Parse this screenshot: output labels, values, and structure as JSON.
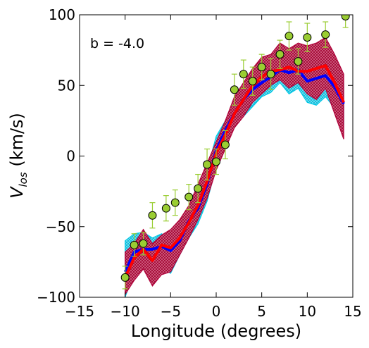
{
  "chart_data": {
    "type": "line",
    "annotation": "b = -4.0",
    "xlabel": "Longitude (degrees)",
    "ylabel_main": "V",
    "ylabel_sub": "los",
    "ylabel_unit": " (km/s)",
    "xlim": [
      -15,
      15
    ],
    "ylim": [
      -100,
      100
    ],
    "xticks": [
      -15,
      -10,
      -5,
      0,
      5,
      10,
      15
    ],
    "yticks": [
      -100,
      -50,
      0,
      50,
      100
    ],
    "xtick_labels": [
      "−15",
      "−10",
      "−5",
      "0",
      "5",
      "10",
      "15"
    ],
    "ytick_labels": [
      "−100",
      "−50",
      "0",
      "50",
      "100"
    ],
    "grid": false,
    "colors": {
      "blue_line": "#0000ff",
      "red_line": "#ff0000",
      "cyan_band": "#00c8e6",
      "crimson_band": "#b0003a",
      "points_fill": "#9acd32",
      "errorbar": "#9acd32"
    },
    "band_cyan": {
      "x": [
        -10,
        -9,
        -8,
        -7,
        -6,
        -5,
        -4,
        -3,
        -2,
        -1,
        0,
        1,
        2,
        3,
        4,
        5,
        6,
        7,
        8,
        9,
        10,
        11,
        12,
        13,
        14
      ],
      "upper": [
        -60,
        -55,
        -54,
        -58,
        -55,
        -58,
        -50,
        -38,
        -26,
        -10,
        14,
        25,
        38,
        50,
        58,
        60,
        65,
        68,
        74,
        68,
        72,
        70,
        70,
        64,
        52
      ],
      "lower": [
        -100,
        -82,
        -78,
        -75,
        -80,
        -83,
        -70,
        -58,
        -48,
        -32,
        -8,
        6,
        22,
        28,
        35,
        42,
        45,
        52,
        44,
        48,
        38,
        36,
        42,
        34,
        22
      ]
    },
    "band_crimson": {
      "x": [
        -10,
        -9,
        -8,
        -7,
        -6,
        -5,
        -4,
        -3,
        -2,
        -1,
        0,
        1,
        2,
        3,
        4,
        5,
        6,
        7,
        8,
        9,
        10,
        11,
        12,
        13,
        14
      ],
      "upper": [
        -68,
        -62,
        -52,
        -62,
        -56,
        -52,
        -45,
        -35,
        -20,
        -5,
        10,
        25,
        42,
        52,
        62,
        70,
        72,
        80,
        76,
        80,
        78,
        80,
        84,
        72,
        58
      ],
      "lower": [
        -98,
        -88,
        -80,
        -92,
        -84,
        -82,
        -70,
        -58,
        -45,
        -30,
        -10,
        5,
        20,
        28,
        38,
        44,
        50,
        54,
        48,
        52,
        44,
        40,
        48,
        30,
        12
      ]
    },
    "series": [
      {
        "x": [
          -10,
          -9,
          -8,
          -7,
          -6,
          -5,
          -4,
          -3,
          -2,
          -1,
          0,
          1,
          2,
          3,
          4,
          5,
          6,
          7,
          8,
          9,
          10,
          11,
          12,
          13,
          14
        ],
        "values": [
          -82,
          -68,
          -66,
          -66,
          -64,
          -67,
          -60,
          -46,
          -37,
          -20,
          4,
          18,
          30,
          40,
          47,
          52,
          56,
          61,
          59,
          61,
          53,
          55,
          57,
          49,
          37
        ]
      },
      {
        "x": [
          -10,
          -9,
          -8,
          -7,
          -6,
          -5,
          -4,
          -3,
          -2,
          -1,
          0,
          1,
          2,
          3,
          4,
          5,
          6,
          7,
          8,
          9,
          10,
          11,
          12,
          13,
          14
        ],
        "values": [
          -86,
          -72,
          -66,
          -74,
          -63,
          -65,
          -58,
          -47,
          -35,
          -18,
          2,
          15,
          30,
          40,
          50,
          56,
          60,
          61,
          63,
          60,
          60,
          62,
          64,
          52,
          38
        ]
      }
    ],
    "points": {
      "x": [
        -10,
        -9,
        -8,
        -7,
        -5.5,
        -4.5,
        -3,
        -2,
        -1,
        0,
        1,
        2,
        3,
        4,
        5,
        6,
        7,
        8,
        9,
        10,
        12,
        14.2
      ],
      "y": [
        -86,
        -63,
        -62,
        -42,
        -37,
        -33,
        -29,
        -23,
        -6,
        -4,
        8,
        47,
        58,
        53,
        63,
        58,
        72,
        85,
        67,
        84,
        86,
        99
      ],
      "err": [
        8,
        8,
        8,
        9,
        9,
        9,
        9,
        10,
        11,
        9,
        10,
        11,
        10,
        10,
        9,
        11,
        10,
        10,
        9,
        10,
        9,
        8
      ]
    }
  }
}
